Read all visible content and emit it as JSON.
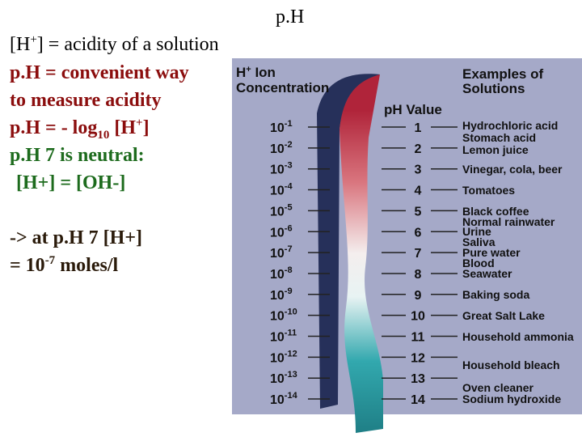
{
  "slide": {
    "title": "p.H",
    "line1": [
      "[H",
      "+",
      "] = acidity of a solution"
    ],
    "line2": "p.H = convenient way",
    "line3": "to measure acidity",
    "line4": [
      "p.H = - log",
      "10",
      " [H",
      "+",
      "]"
    ],
    "line5": "p.H 7 is neutral:",
    "line6": "[H+] = [OH-]",
    "line7": "-> at p.H 7 [H+]",
    "line8": [
      "= 10",
      "-7",
      " moles/l"
    ]
  },
  "diagram": {
    "concentration_header": [
      "H",
      "+",
      " Ion",
      "Concentration"
    ],
    "ph_header": "pH Value",
    "examples_header": [
      "Examples of",
      "Solutions"
    ],
    "concentrations": [
      {
        "base": "10",
        "exponent": "-1"
      },
      {
        "base": "10",
        "exponent": "-2"
      },
      {
        "base": "10",
        "exponent": "-3"
      },
      {
        "base": "10",
        "exponent": "-4"
      },
      {
        "base": "10",
        "exponent": "-5"
      },
      {
        "base": "10",
        "exponent": "-6"
      },
      {
        "base": "10",
        "exponent": "-7"
      },
      {
        "base": "10",
        "exponent": "-8"
      },
      {
        "base": "10",
        "exponent": "-9"
      },
      {
        "base": "10",
        "exponent": "-10"
      },
      {
        "base": "10",
        "exponent": "-11"
      },
      {
        "base": "10",
        "exponent": "-12"
      },
      {
        "base": "10",
        "exponent": "-13"
      },
      {
        "base": "10",
        "exponent": "-14"
      }
    ],
    "ph_values": [
      "1",
      "2",
      "3",
      "4",
      "5",
      "6",
      "7",
      "8",
      "9",
      "10",
      "11",
      "12",
      "13",
      "14"
    ],
    "examples": [
      "Hydrochloric acid",
      "Stomach acid",
      "Lemon juice",
      "Vinegar, cola, beer",
      "Tomatoes",
      "Black coffee",
      "Normal rainwater",
      "Urine",
      "Saliva",
      "Pure water",
      "Blood",
      "Seawater",
      "Baking soda",
      "Great Salt Lake",
      "Household ammonia",
      "Household bleach",
      "Oven cleaner",
      "Sodium hydroxide"
    ]
  }
}
